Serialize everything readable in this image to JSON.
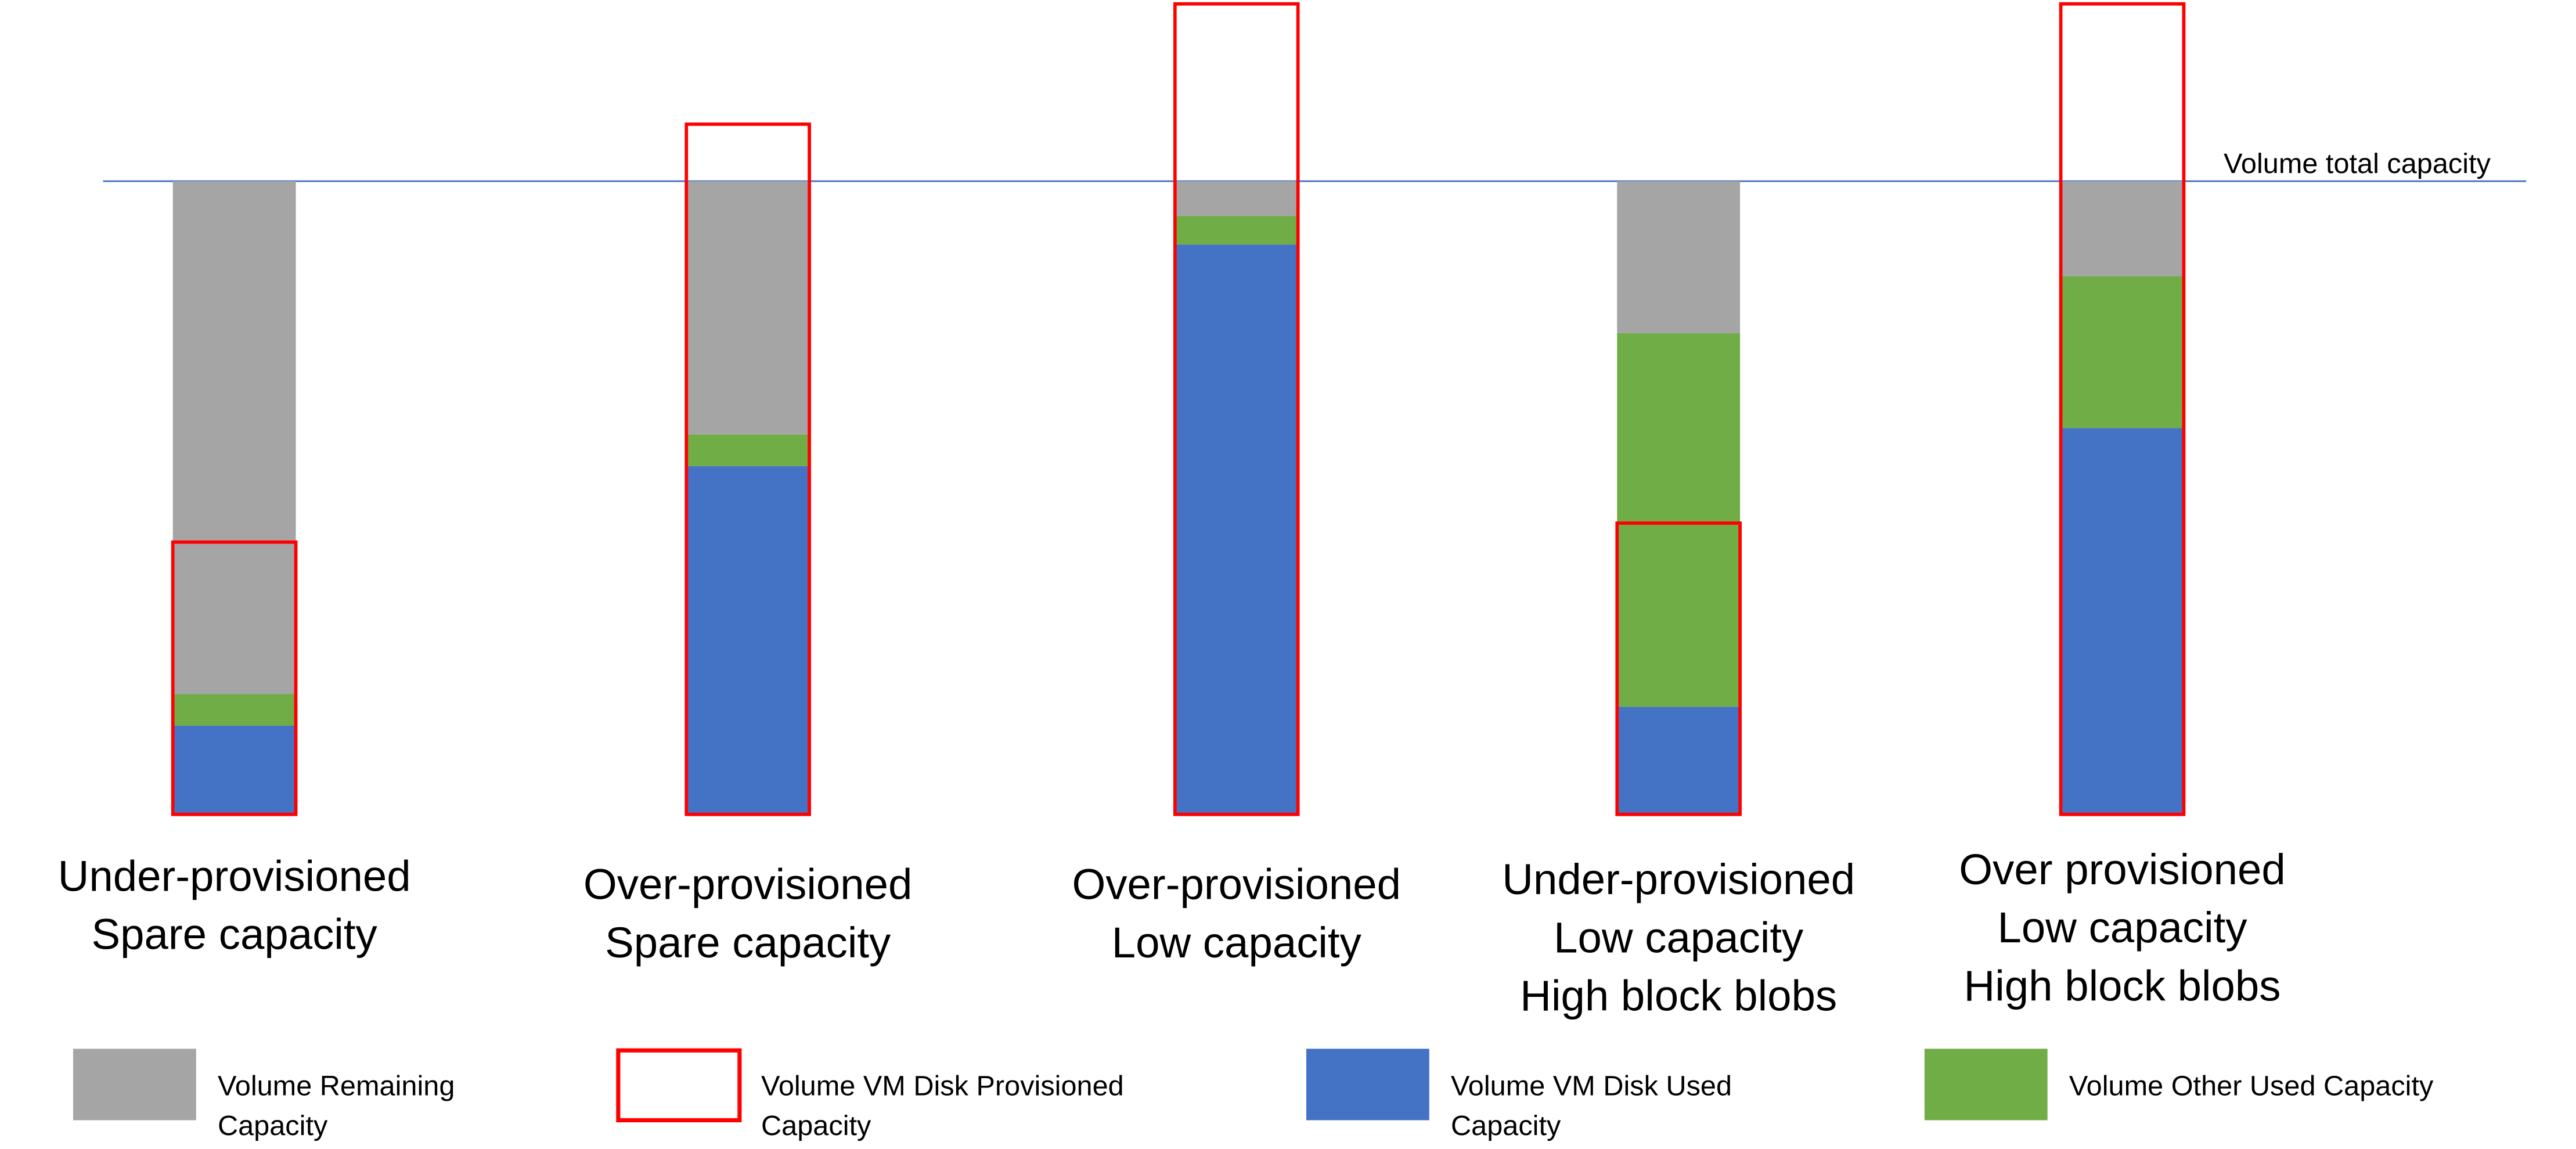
{
  "chart_data": {
    "type": "bar",
    "stacked": true,
    "reference_line": {
      "label": "Volume total capacity",
      "value": 100,
      "color": "#4472C4"
    },
    "categories": [
      [
        "Under-provisioned",
        "Spare capacity"
      ],
      [
        "Over-provisioned",
        "Spare capacity"
      ],
      [
        "Over-provisioned",
        "Low capacity"
      ],
      [
        "Under-provisioned",
        "Low capacity",
        "High block blobs"
      ],
      [
        "Over provisioned",
        "Low capacity",
        "High block blobs"
      ]
    ],
    "series": [
      {
        "name": "Volume VM Disk Used Capacity",
        "color": "#4472C4",
        "values": [
          14,
          55,
          90,
          17,
          61
        ]
      },
      {
        "name": "Volume Other Used Capacity",
        "color": "#70AD47",
        "values": [
          5,
          5,
          4.5,
          59,
          24
        ]
      },
      {
        "name": "Volume Remaining Capacity",
        "color": "#A5A5A5",
        "values": [
          81,
          40,
          5.5,
          24,
          15
        ]
      }
    ],
    "outline_series": {
      "name": "Volume VM Disk Provisioned Capacity",
      "color": "#FF0000",
      "values": [
        43,
        109,
        128,
        46,
        128
      ]
    },
    "legend": {
      "placement": "bottom",
      "items": [
        {
          "lines": [
            "Volume Remaining",
            "Capacity"
          ],
          "color": "#A5A5A5",
          "style": "fill"
        },
        {
          "lines": [
            "Volume VM Disk Provisioned",
            "Capacity"
          ],
          "color": "#FF0000",
          "style": "outline"
        },
        {
          "lines": [
            "Volume VM Disk Used",
            "Capacity"
          ],
          "color": "#4472C4",
          "style": "fill"
        },
        {
          "lines": [
            "Volume Other Used Capacity"
          ],
          "color": "#70AD47",
          "style": "fill"
        }
      ]
    },
    "grid": false
  }
}
